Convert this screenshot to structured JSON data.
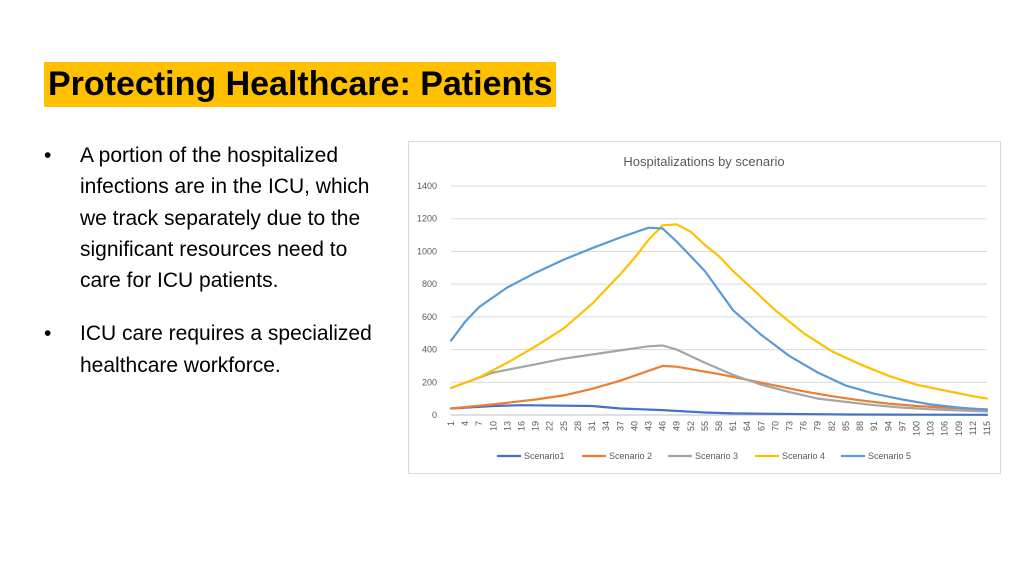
{
  "slide": {
    "title": "Protecting Healthcare: Patients",
    "bullets": [
      {
        "marker": "•",
        "text": "A portion of the hospitalized infections are in the ICU, which we track separately due to the significant resources need to care for ICU patients."
      },
      {
        "marker": "•",
        "text": "ICU care requires a specialized healthcare workforce."
      }
    ]
  },
  "chart_data": {
    "type": "line",
    "title": "Hospitalizations by scenario",
    "xlabel": "",
    "ylabel": "",
    "ylim": [
      0,
      1400
    ],
    "yticks": [
      0,
      200,
      400,
      600,
      800,
      1000,
      1200,
      1400
    ],
    "x_start": 1,
    "x_end": 115,
    "x_tick_step": 3,
    "grid": true,
    "legend_position": "bottom",
    "colors": {
      "Scenario1": "#4472c4",
      "Scenario 2": "#ed7d31",
      "Scenario 3": "#a5a5a5",
      "Scenario 4": "#ffc000",
      "Scenario 5": "#5b9bd5"
    },
    "series": [
      {
        "name": "Scenario1",
        "x": [
          1,
          10,
          16,
          31,
          37,
          46,
          55,
          61,
          79,
          85,
          100,
          115
        ],
        "values": [
          40,
          55,
          60,
          55,
          40,
          30,
          15,
          10,
          5,
          3,
          2,
          1
        ]
      },
      {
        "name": "Scenario 2",
        "x": [
          1,
          10,
          19,
          25,
          31,
          37,
          43,
          46,
          49,
          52,
          58,
          64,
          70,
          76,
          82,
          88,
          94,
          100,
          106,
          115
        ],
        "values": [
          40,
          65,
          95,
          120,
          160,
          210,
          270,
          300,
          295,
          280,
          250,
          215,
          180,
          145,
          115,
          90,
          70,
          55,
          45,
          35
        ]
      },
      {
        "name": "Scenario 3",
        "x": [
          1,
          10,
          19,
          25,
          31,
          37,
          43,
          46,
          49,
          52,
          55,
          61,
          67,
          73,
          79,
          85,
          91,
          97,
          103,
          109,
          115
        ],
        "values": [
          165,
          260,
          310,
          345,
          370,
          395,
          420,
          425,
          400,
          360,
          320,
          245,
          185,
          140,
          100,
          80,
          60,
          45,
          35,
          28,
          22
        ]
      },
      {
        "name": "Scenario 4",
        "x": [
          1,
          7,
          13,
          19,
          25,
          31,
          37,
          40,
          43,
          46,
          49,
          52,
          55,
          58,
          61,
          64,
          70,
          76,
          82,
          88,
          94,
          100,
          106,
          112,
          115
        ],
        "values": [
          165,
          230,
          320,
          420,
          530,
          680,
          860,
          960,
          1070,
          1160,
          1165,
          1120,
          1040,
          970,
          880,
          800,
          640,
          500,
          390,
          310,
          240,
          185,
          150,
          115,
          100
        ]
      },
      {
        "name": "Scenario 5",
        "x": [
          1,
          4,
          7,
          13,
          19,
          25,
          31,
          37,
          43,
          46,
          49,
          52,
          55,
          58,
          61,
          67,
          73,
          79,
          85,
          91,
          97,
          103,
          109,
          115
        ],
        "values": [
          455,
          570,
          660,
          780,
          870,
          950,
          1020,
          1085,
          1145,
          1140,
          1060,
          970,
          880,
          760,
          640,
          490,
          360,
          260,
          180,
          130,
          95,
          65,
          45,
          32
        ]
      }
    ]
  }
}
